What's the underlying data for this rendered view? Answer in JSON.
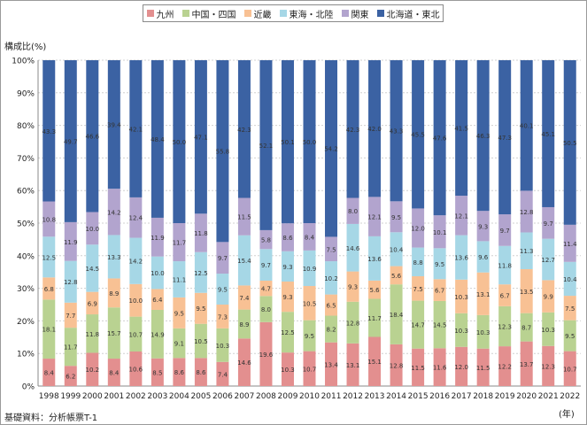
{
  "chart_data": {
    "type": "bar",
    "stacked": true,
    "percent": true,
    "ylabel": "構成比(%)",
    "xunit": "(年)",
    "source": "基礎資料：分析帳票T-1",
    "ylim": [
      0,
      100
    ],
    "yticks": [
      "0%",
      "10%",
      "20%",
      "30%",
      "40%",
      "50%",
      "60%",
      "70%",
      "80%",
      "90%",
      "100%"
    ],
    "grid": true,
    "legend_position": "top",
    "categories": [
      "1998",
      "1999",
      "2000",
      "2001",
      "2002",
      "2003",
      "2004",
      "2005",
      "2006",
      "2007",
      "2008",
      "2009",
      "2010",
      "2011",
      "2012",
      "2013",
      "2014",
      "2015",
      "2016",
      "2017",
      "2018",
      "2019",
      "2020",
      "2021",
      "2022"
    ],
    "series": [
      {
        "name": "九州",
        "color": "#e38f8f",
        "values": [
          8.4,
          6.2,
          10.2,
          8.4,
          10.6,
          8.5,
          8.6,
          8.6,
          7.4,
          14.6,
          19.6,
          10.3,
          10.7,
          13.4,
          13.1,
          15.1,
          12.8,
          11.5,
          11.6,
          12.0,
          11.5,
          12.2,
          13.7,
          12.3,
          10.7
        ]
      },
      {
        "name": "中国・四国",
        "color": "#b9d291",
        "values": [
          18.1,
          11.7,
          11.8,
          15.7,
          10.7,
          14.9,
          9.1,
          10.5,
          10.3,
          8.9,
          8.0,
          12.5,
          9.5,
          8.2,
          12.8,
          11.7,
          18.4,
          14.7,
          14.5,
          10.3,
          10.3,
          12.3,
          8.7,
          10.3,
          9.5
        ]
      },
      {
        "name": "近畿",
        "color": "#f8c194",
        "values": [
          6.8,
          7.7,
          6.9,
          8.9,
          10.0,
          6.4,
          9.5,
          9.5,
          7.3,
          7.4,
          4.7,
          9.3,
          10.5,
          6.5,
          9.3,
          5.6,
          5.6,
          7.5,
          6.7,
          10.3,
          13.1,
          6.7,
          13.5,
          9.9,
          7.5
        ]
      },
      {
        "name": "東海・北陸",
        "color": "#a6d7e6",
        "values": [
          12.5,
          12.8,
          14.5,
          13.3,
          14.2,
          10.0,
          11.1,
          12.5,
          9.5,
          15.4,
          9.7,
          9.3,
          10.9,
          10.2,
          14.6,
          13.6,
          10.4,
          8.8,
          9.5,
          13.6,
          9.6,
          11.8,
          11.3,
          12.7,
          10.4
        ]
      },
      {
        "name": "関東",
        "color": "#b2a4ce",
        "values": [
          10.8,
          11.9,
          10.0,
          14.2,
          12.4,
          11.9,
          11.7,
          11.8,
          9.7,
          11.5,
          5.8,
          8.6,
          8.4,
          7.5,
          8.0,
          12.1,
          9.5,
          12.0,
          10.1,
          12.1,
          9.3,
          9.7,
          12.8,
          9.7,
          11.4
        ]
      },
      {
        "name": "北海道・東北",
        "color": "#3b62a3",
        "values": [
          43.3,
          49.7,
          46.6,
          39.4,
          42.1,
          48.4,
          50.0,
          47.1,
          55.8,
          42.3,
          52.1,
          50.1,
          50.0,
          54.2,
          42.3,
          42.0,
          43.3,
          45.5,
          47.6,
          41.5,
          46.3,
          47.3,
          40.1,
          45.1,
          50.5
        ]
      }
    ]
  }
}
